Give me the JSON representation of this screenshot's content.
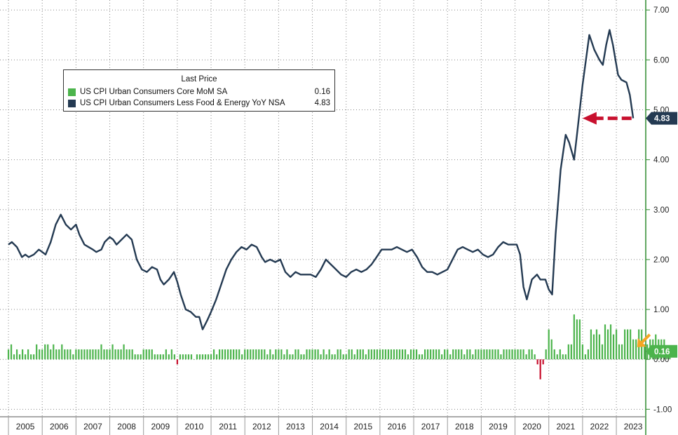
{
  "chart_data": {
    "type": "line",
    "legend_title": "Last Price",
    "legend_position": "top-left",
    "series": [
      {
        "name": "US CPI Urban Consumers Core MoM SA",
        "kind": "bar",
        "color": "#4cb44c",
        "negative_color": "#c8102e",
        "last_value": "0.16",
        "x_start": 2005.0,
        "x_step": 0.0833333,
        "values": [
          0.2,
          0.3,
          0.1,
          0.2,
          0.1,
          0.2,
          0.1,
          0.2,
          0.1,
          0.1,
          0.3,
          0.2,
          0.2,
          0.3,
          0.3,
          0.2,
          0.3,
          0.2,
          0.2,
          0.3,
          0.2,
          0.2,
          0.2,
          0.1,
          0.2,
          0.2,
          0.2,
          0.2,
          0.2,
          0.2,
          0.2,
          0.2,
          0.2,
          0.3,
          0.2,
          0.2,
          0.2,
          0.3,
          0.2,
          0.2,
          0.2,
          0.3,
          0.2,
          0.2,
          0.2,
          0.1,
          0.1,
          0.1,
          0.2,
          0.2,
          0.2,
          0.2,
          0.1,
          0.1,
          0.1,
          0.1,
          0.2,
          0.1,
          0.2,
          0.1,
          -0.1,
          0.1,
          0.1,
          0.1,
          0.1,
          0.1,
          0.0,
          0.1,
          0.1,
          0.1,
          0.1,
          0.1,
          0.1,
          0.2,
          0.1,
          0.2,
          0.2,
          0.2,
          0.2,
          0.2,
          0.2,
          0.2,
          0.2,
          0.1,
          0.2,
          0.2,
          0.2,
          0.2,
          0.2,
          0.2,
          0.2,
          0.2,
          0.1,
          0.2,
          0.1,
          0.2,
          0.2,
          0.2,
          0.1,
          0.2,
          0.1,
          0.1,
          0.2,
          0.2,
          0.1,
          0.1,
          0.2,
          0.2,
          0.2,
          0.2,
          0.2,
          0.1,
          0.2,
          0.1,
          0.2,
          0.1,
          0.1,
          0.2,
          0.2,
          0.1,
          0.1,
          0.2,
          0.2,
          0.1,
          0.2,
          0.2,
          0.2,
          0.1,
          0.2,
          0.2,
          0.2,
          0.2,
          0.2,
          0.2,
          0.2,
          0.2,
          0.2,
          0.2,
          0.2,
          0.2,
          0.2,
          0.2,
          0.1,
          0.2,
          0.2,
          0.2,
          0.1,
          0.1,
          0.2,
          0.2,
          0.2,
          0.2,
          0.2,
          0.2,
          0.1,
          0.2,
          0.2,
          0.1,
          0.2,
          0.2,
          0.2,
          0.2,
          0.1,
          0.2,
          0.2,
          0.1,
          0.2,
          0.2,
          0.2,
          0.2,
          0.2,
          0.2,
          0.2,
          0.2,
          0.2,
          0.1,
          0.2,
          0.2,
          0.2,
          0.2,
          0.2,
          0.2,
          0.2,
          0.2,
          0.1,
          0.2,
          0.2,
          0.1,
          -0.1,
          -0.4,
          -0.1,
          0.2,
          0.6,
          0.4,
          0.2,
          0.1,
          0.2,
          0.1,
          0.1,
          0.3,
          0.3,
          0.9,
          0.8,
          0.8,
          0.3,
          0.1,
          0.2,
          0.6,
          0.5,
          0.6,
          0.5,
          0.3,
          0.7,
          0.6,
          0.7,
          0.5,
          0.6,
          0.3,
          0.3,
          0.6,
          0.6,
          0.6,
          0.4,
          0.4,
          0.6,
          0.6,
          0.3,
          0.3,
          0.4,
          0.4,
          0.5,
          0.4,
          0.4,
          0.4,
          0.2,
          0.2
        ]
      },
      {
        "name": "US CPI Urban Consumers Less Food & Energy YoY NSA",
        "kind": "line",
        "color": "#243a52",
        "last_value": "4.83",
        "points": [
          [
            2005.0,
            2.3
          ],
          [
            2005.1,
            2.35
          ],
          [
            2005.25,
            2.25
          ],
          [
            2005.4,
            2.05
          ],
          [
            2005.5,
            2.1
          ],
          [
            2005.6,
            2.05
          ],
          [
            2005.75,
            2.1
          ],
          [
            2005.9,
            2.2
          ],
          [
            2006.0,
            2.15
          ],
          [
            2006.1,
            2.1
          ],
          [
            2006.25,
            2.35
          ],
          [
            2006.4,
            2.7
          ],
          [
            2006.55,
            2.9
          ],
          [
            2006.7,
            2.7
          ],
          [
            2006.85,
            2.6
          ],
          [
            2007.0,
            2.7
          ],
          [
            2007.1,
            2.5
          ],
          [
            2007.25,
            2.3
          ],
          [
            2007.5,
            2.2
          ],
          [
            2007.6,
            2.15
          ],
          [
            2007.75,
            2.2
          ],
          [
            2007.85,
            2.35
          ],
          [
            2008.0,
            2.45
          ],
          [
            2008.1,
            2.4
          ],
          [
            2008.2,
            2.3
          ],
          [
            2008.35,
            2.4
          ],
          [
            2008.5,
            2.5
          ],
          [
            2008.65,
            2.4
          ],
          [
            2008.8,
            2.0
          ],
          [
            2008.95,
            1.8
          ],
          [
            2009.1,
            1.75
          ],
          [
            2009.25,
            1.85
          ],
          [
            2009.4,
            1.8
          ],
          [
            2009.5,
            1.6
          ],
          [
            2009.6,
            1.5
          ],
          [
            2009.75,
            1.6
          ],
          [
            2009.9,
            1.75
          ],
          [
            2010.0,
            1.55
          ],
          [
            2010.1,
            1.3
          ],
          [
            2010.25,
            1.0
          ],
          [
            2010.4,
            0.95
          ],
          [
            2010.55,
            0.85
          ],
          [
            2010.65,
            0.85
          ],
          [
            2010.75,
            0.6
          ],
          [
            2010.9,
            0.8
          ],
          [
            2011.0,
            0.95
          ],
          [
            2011.15,
            1.2
          ],
          [
            2011.3,
            1.5
          ],
          [
            2011.45,
            1.8
          ],
          [
            2011.6,
            2.0
          ],
          [
            2011.75,
            2.15
          ],
          [
            2011.9,
            2.25
          ],
          [
            2012.05,
            2.2
          ],
          [
            2012.2,
            2.3
          ],
          [
            2012.35,
            2.25
          ],
          [
            2012.5,
            2.05
          ],
          [
            2012.6,
            1.95
          ],
          [
            2012.75,
            2.0
          ],
          [
            2012.9,
            1.95
          ],
          [
            2013.05,
            2.0
          ],
          [
            2013.2,
            1.75
          ],
          [
            2013.35,
            1.65
          ],
          [
            2013.5,
            1.75
          ],
          [
            2013.65,
            1.7
          ],
          [
            2013.8,
            1.7
          ],
          [
            2013.95,
            1.7
          ],
          [
            2014.1,
            1.65
          ],
          [
            2014.25,
            1.8
          ],
          [
            2014.4,
            2.0
          ],
          [
            2014.55,
            1.9
          ],
          [
            2014.7,
            1.8
          ],
          [
            2014.85,
            1.7
          ],
          [
            2015.0,
            1.65
          ],
          [
            2015.15,
            1.75
          ],
          [
            2015.3,
            1.8
          ],
          [
            2015.45,
            1.75
          ],
          [
            2015.6,
            1.8
          ],
          [
            2015.75,
            1.9
          ],
          [
            2015.9,
            2.05
          ],
          [
            2016.05,
            2.2
          ],
          [
            2016.2,
            2.2
          ],
          [
            2016.35,
            2.2
          ],
          [
            2016.5,
            2.25
          ],
          [
            2016.65,
            2.2
          ],
          [
            2016.8,
            2.15
          ],
          [
            2016.95,
            2.2
          ],
          [
            2017.1,
            2.05
          ],
          [
            2017.25,
            1.85
          ],
          [
            2017.4,
            1.75
          ],
          [
            2017.55,
            1.75
          ],
          [
            2017.7,
            1.7
          ],
          [
            2017.85,
            1.75
          ],
          [
            2018.0,
            1.8
          ],
          [
            2018.15,
            2.0
          ],
          [
            2018.3,
            2.2
          ],
          [
            2018.45,
            2.25
          ],
          [
            2018.6,
            2.2
          ],
          [
            2018.75,
            2.15
          ],
          [
            2018.9,
            2.2
          ],
          [
            2019.05,
            2.1
          ],
          [
            2019.2,
            2.05
          ],
          [
            2019.35,
            2.1
          ],
          [
            2019.5,
            2.25
          ],
          [
            2019.65,
            2.35
          ],
          [
            2019.8,
            2.3
          ],
          [
            2019.95,
            2.3
          ],
          [
            2020.05,
            2.3
          ],
          [
            2020.15,
            2.1
          ],
          [
            2020.25,
            1.45
          ],
          [
            2020.35,
            1.2
          ],
          [
            2020.5,
            1.6
          ],
          [
            2020.65,
            1.7
          ],
          [
            2020.75,
            1.6
          ],
          [
            2020.9,
            1.6
          ],
          [
            2021.0,
            1.4
          ],
          [
            2021.1,
            1.3
          ],
          [
            2021.2,
            2.5
          ],
          [
            2021.35,
            3.8
          ],
          [
            2021.5,
            4.5
          ],
          [
            2021.6,
            4.35
          ],
          [
            2021.75,
            4.0
          ],
          [
            2021.85,
            4.6
          ],
          [
            2022.0,
            5.5
          ],
          [
            2022.1,
            6.0
          ],
          [
            2022.2,
            6.5
          ],
          [
            2022.35,
            6.2
          ],
          [
            2022.5,
            6.0
          ],
          [
            2022.6,
            5.9
          ],
          [
            2022.7,
            6.3
          ],
          [
            2022.8,
            6.6
          ],
          [
            2022.9,
            6.3
          ],
          [
            2023.05,
            5.7
          ],
          [
            2023.15,
            5.6
          ],
          [
            2023.3,
            5.55
          ],
          [
            2023.4,
            5.3
          ],
          [
            2023.5,
            4.83
          ]
        ]
      }
    ],
    "x_range": [
      2004.75,
      2023.85
    ],
    "x_tick_labels": [
      "2005",
      "2006",
      "2007",
      "2008",
      "2009",
      "2010",
      "2011",
      "2012",
      "2013",
      "2014",
      "2015",
      "2016",
      "2017",
      "2018",
      "2019",
      "2020",
      "2021",
      "2022",
      "2023"
    ],
    "ylim": [
      -1.15,
      7.2
    ],
    "y_tick_labels": [
      "7.00",
      "6.00",
      "5.00",
      "4.00",
      "3.00",
      "2.00",
      "1.00",
      "0.00",
      "-1.00"
    ],
    "y_tick_values": [
      7,
      6,
      5,
      4,
      3,
      2,
      1,
      0,
      -1
    ],
    "grid": true,
    "annotations": [
      {
        "type": "arrow",
        "color": "#c8102e",
        "style": "dashed",
        "direction": "left",
        "y": 4.83,
        "x_from": 2023.45,
        "x_to": 2022.0
      },
      {
        "type": "arrow",
        "color": "#f5a623",
        "style": "solid",
        "direction": "down-left",
        "y": 0.3,
        "x": 2023.7
      }
    ],
    "axis_color": "#2e8b2e"
  }
}
